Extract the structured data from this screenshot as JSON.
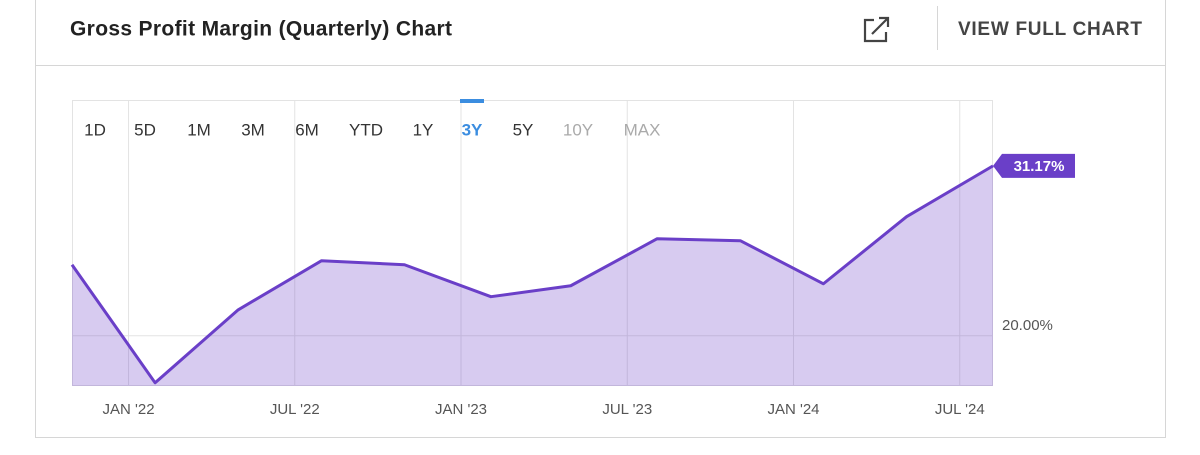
{
  "header": {
    "title": "Gross Profit Margin (Quarterly) Chart",
    "action": "VIEW FULL CHART"
  },
  "range_buttons": {
    "options": [
      "1D",
      "5D",
      "1M",
      "3M",
      "6M",
      "YTD",
      "1Y",
      "3Y",
      "5Y",
      "10Y",
      "MAX"
    ],
    "selected": "3Y",
    "disabled": [
      "10Y",
      "MAX"
    ]
  },
  "chart_data": {
    "type": "area",
    "x": [
      2021.83,
      2022.08,
      2022.33,
      2022.58,
      2022.83,
      2023.09,
      2023.33,
      2023.59,
      2023.84,
      2024.09,
      2024.34,
      2024.6
    ],
    "series": [
      {
        "name": "Gross Profit Margin",
        "color": "#6a3fc8",
        "values": [
          24.67,
          16.91,
          21.71,
          24.93,
          24.67,
          22.57,
          23.29,
          26.38,
          26.25,
          23.42,
          27.83,
          31.17
        ],
        "value_labels": [
          null,
          null,
          null,
          null,
          null,
          null,
          null,
          null,
          null,
          null,
          null,
          "31.17%"
        ]
      }
    ],
    "xlim": [
      2021.83,
      2024.6
    ],
    "xticks": [
      {
        "value": 2022,
        "label": "JAN '22"
      },
      {
        "value": 2022.5,
        "label": "JUL '22"
      },
      {
        "value": 2023,
        "label": "JAN '23"
      },
      {
        "value": 2023.5,
        "label": "JUL '23"
      },
      {
        "value": 2024,
        "label": "JAN '24"
      },
      {
        "value": 2024.5,
        "label": "JUL '24"
      }
    ],
    "ylim": [
      16.7,
      35.5
    ],
    "yticks": [
      {
        "value": 20,
        "label": "20.00%"
      }
    ],
    "grid": true
  }
}
